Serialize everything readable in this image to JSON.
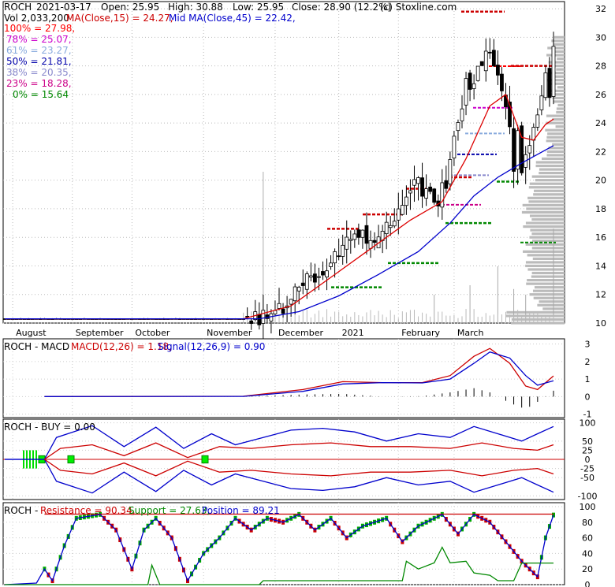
{
  "header": {
    "ticker": "ROCH",
    "date": "2021-03-17",
    "open": "Open: 25.95",
    "high": "High: 30.88",
    "low": "Low: 25.95",
    "close": "Close: 28.90 (12.2%)",
    "source": "(c) Stoxline.com",
    "volume": "Vol 2,033,200",
    "ma15": "MA(Close,15) = 24.27,",
    "ma45": "Mid MA(Close,45) = 22.42,"
  },
  "fib_levels": [
    {
      "label": "100% = 27.98,",
      "color": "#ff0000",
      "value": 27.98
    },
    {
      "label": "78% = 25.07,",
      "color": "#cc00cc",
      "value": 25.07
    },
    {
      "label": "61% = 23.27,",
      "color": "#88aadd",
      "value": 23.27
    },
    {
      "label": "50% = 21.81,",
      "color": "#0000aa",
      "value": 21.81
    },
    {
      "label": "38% = 20.35,",
      "color": "#8888cc",
      "value": 20.35
    },
    {
      "label": "23% = 18.28,",
      "color": "#cc0088",
      "value": 18.28
    },
    {
      "label": "0% = 15.64",
      "color": "#008800",
      "value": 15.64
    }
  ],
  "macd_header": {
    "label": "ROCH - MACD",
    "macd": "MACD(12,26) = 1.18,",
    "signal": "Signal(12,26,9) = 0.90"
  },
  "buy_header": {
    "label": "ROCH - BUY = 0.00"
  },
  "res_header": {
    "label": "ROCH - ",
    "resistance": "Resistance = 90.34,",
    "support": "Support = 27.63,",
    "position": "Position = 89.21"
  },
  "colors": {
    "up": "#00aa00",
    "down": "#cc0000",
    "ma15": "#dd0000",
    "ma45": "#0000cc",
    "support": "#008800",
    "resistance": "#cc0000"
  },
  "chart_data": [
    {
      "type": "candlestick",
      "title": "ROCH 2021-03-17",
      "x_labels": [
        "August",
        "September",
        "October",
        "November",
        "December",
        "2021",
        "February",
        "March"
      ],
      "y_ticks": [
        10,
        12,
        14,
        16,
        18,
        20,
        22,
        24,
        26,
        28,
        30,
        32
      ],
      "ylim": [
        10,
        32.5
      ],
      "grid": true,
      "close_path": [
        [
          0,
          10.3
        ],
        [
          60,
          10.3
        ],
        [
          66,
          10.5
        ],
        [
          70,
          11.2
        ],
        [
          74,
          12.5
        ],
        [
          78,
          13.3
        ],
        [
          82,
          14.5
        ],
        [
          86,
          15.8
        ],
        [
          90,
          16.8
        ],
        [
          92,
          15.4
        ],
        [
          95,
          16.2
        ],
        [
          98,
          17.2
        ],
        [
          101,
          18.8
        ],
        [
          104,
          19.8
        ],
        [
          107,
          18.7
        ],
        [
          109,
          18.5
        ],
        [
          111,
          20.0
        ],
        [
          114,
          24.0
        ],
        [
          116,
          27.0
        ],
        [
          118,
          26.5
        ],
        [
          120,
          28.5
        ],
        [
          122,
          29.5
        ],
        [
          124,
          27.2
        ],
        [
          126,
          25.5
        ],
        [
          127,
          24.0
        ],
        [
          128,
          20.5
        ],
        [
          129,
          23.0
        ],
        [
          130,
          20.5
        ],
        [
          131,
          22.0
        ],
        [
          133,
          24.0
        ],
        [
          134,
          24.8
        ],
        [
          136,
          27.5
        ],
        [
          137,
          25.7
        ],
        [
          138,
          28.9
        ]
      ],
      "ma15_path": [
        [
          0,
          10.3
        ],
        [
          60,
          10.3
        ],
        [
          72,
          11.2
        ],
        [
          82,
          13.2
        ],
        [
          92,
          15.2
        ],
        [
          102,
          17.2
        ],
        [
          110,
          18.5
        ],
        [
          116,
          21.5
        ],
        [
          122,
          25.2
        ],
        [
          126,
          26.0
        ],
        [
          130,
          23.0
        ],
        [
          133,
          22.8
        ],
        [
          136,
          23.9
        ],
        [
          138,
          24.27
        ]
      ],
      "ma45_path": [
        [
          0,
          10.3
        ],
        [
          64,
          10.3
        ],
        [
          74,
          10.8
        ],
        [
          84,
          11.9
        ],
        [
          94,
          13.4
        ],
        [
          104,
          15.0
        ],
        [
          112,
          17.0
        ],
        [
          118,
          18.9
        ],
        [
          124,
          20.2
        ],
        [
          130,
          21.2
        ],
        [
          138,
          22.42
        ]
      ],
      "volume_spikes": [
        [
          65,
          0.8
        ],
        [
          108,
          0.15
        ],
        [
          117,
          0.2
        ],
        [
          124,
          0.3
        ],
        [
          128,
          0.18
        ],
        [
          131,
          0.15
        ],
        [
          138,
          0.5
        ]
      ]
    },
    {
      "type": "line",
      "title": "ROCH - MACD",
      "y_ticks": [
        3,
        2,
        1,
        0,
        -1
      ],
      "ylim": [
        -1.2,
        3.3
      ],
      "series": [
        {
          "name": "MACD(12,26)",
          "color": "#cc0000",
          "values": [
            [
              10,
              0
            ],
            [
              60,
              0.02
            ],
            [
              75,
              0.4
            ],
            [
              85,
              0.85
            ],
            [
              95,
              0.8
            ],
            [
              105,
              0.8
            ],
            [
              112,
              1.2
            ],
            [
              118,
              2.3
            ],
            [
              122,
              2.75
            ],
            [
              127,
              1.9
            ],
            [
              131,
              0.6
            ],
            [
              134,
              0.4
            ],
            [
              138,
              1.18
            ]
          ]
        },
        {
          "name": "Signal(12,26,9)",
          "color": "#0000cc",
          "values": [
            [
              10,
              0
            ],
            [
              60,
              0.01
            ],
            [
              75,
              0.3
            ],
            [
              85,
              0.72
            ],
            [
              95,
              0.8
            ],
            [
              105,
              0.78
            ],
            [
              112,
              1.0
            ],
            [
              118,
              1.9
            ],
            [
              122,
              2.55
            ],
            [
              127,
              2.2
            ],
            [
              131,
              1.2
            ],
            [
              134,
              0.65
            ],
            [
              138,
              0.9
            ]
          ]
        }
      ]
    },
    {
      "type": "line",
      "title": "ROCH - BUY",
      "y_ticks": [
        100,
        50,
        25,
        0,
        -25,
        -50,
        -100
      ],
      "ylim": [
        -110,
        110
      ],
      "series": [
        {
          "name": "upper",
          "color": "#0000cc",
          "values": [
            [
              0,
              0
            ],
            [
              10,
              0
            ],
            [
              13,
              60
            ],
            [
              22,
              92
            ],
            [
              30,
              35
            ],
            [
              38,
              88
            ],
            [
              45,
              30
            ],
            [
              52,
              70
            ],
            [
              58,
              40
            ],
            [
              65,
              60
            ],
            [
              72,
              80
            ],
            [
              80,
              85
            ],
            [
              88,
              75
            ],
            [
              96,
              50
            ],
            [
              104,
              70
            ],
            [
              112,
              60
            ],
            [
              118,
              90
            ],
            [
              124,
              70
            ],
            [
              130,
              50
            ],
            [
              134,
              70
            ],
            [
              138,
              90
            ]
          ]
        },
        {
          "name": "lower",
          "color": "#0000cc",
          "values": [
            [
              0,
              0
            ],
            [
              10,
              0
            ],
            [
              13,
              -60
            ],
            [
              22,
              -92
            ],
            [
              30,
              -35
            ],
            [
              38,
              -88
            ],
            [
              45,
              -30
            ],
            [
              52,
              -70
            ],
            [
              58,
              -40
            ],
            [
              65,
              -60
            ],
            [
              72,
              -80
            ],
            [
              80,
              -85
            ],
            [
              88,
              -75
            ],
            [
              96,
              -50
            ],
            [
              104,
              -70
            ],
            [
              112,
              -60
            ],
            [
              118,
              -90
            ],
            [
              124,
              -70
            ],
            [
              130,
              -50
            ],
            [
              134,
              -70
            ],
            [
              138,
              -90
            ]
          ]
        },
        {
          "name": "mid_up",
          "color": "#cc0000",
          "values": [
            [
              10,
              0
            ],
            [
              14,
              30
            ],
            [
              22,
              40
            ],
            [
              30,
              10
            ],
            [
              38,
              45
            ],
            [
              46,
              5
            ],
            [
              54,
              35
            ],
            [
              62,
              30
            ],
            [
              72,
              40
            ],
            [
              82,
              45
            ],
            [
              92,
              35
            ],
            [
              102,
              35
            ],
            [
              112,
              30
            ],
            [
              120,
              45
            ],
            [
              128,
              30
            ],
            [
              134,
              25
            ],
            [
              138,
              40
            ]
          ]
        },
        {
          "name": "mid_down",
          "color": "#cc0000",
          "values": [
            [
              10,
              0
            ],
            [
              14,
              -30
            ],
            [
              22,
              -40
            ],
            [
              30,
              -10
            ],
            [
              38,
              -45
            ],
            [
              46,
              -5
            ],
            [
              54,
              -35
            ],
            [
              62,
              -30
            ],
            [
              72,
              -40
            ],
            [
              82,
              -45
            ],
            [
              92,
              -35
            ],
            [
              102,
              -35
            ],
            [
              112,
              -30
            ],
            [
              120,
              -45
            ],
            [
              128,
              -30
            ],
            [
              134,
              -25
            ],
            [
              138,
              -40
            ]
          ]
        }
      ]
    },
    {
      "type": "line",
      "title": "ROCH - Resistance / Support / Position",
      "y_ticks": [
        100,
        80,
        60,
        40,
        20,
        0
      ],
      "ylim": [
        0,
        105
      ],
      "series": [
        {
          "name": "Resistance",
          "color": "#cc0000",
          "values": [
            [
              10,
              90.34
            ],
            [
              138,
              90.34
            ]
          ]
        },
        {
          "name": "Position",
          "color": "#0000cc",
          "values": [
            [
              0,
              0
            ],
            [
              8,
              2
            ],
            [
              10,
              20
            ],
            [
              12,
              5
            ],
            [
              15,
              50
            ],
            [
              18,
              85
            ],
            [
              24,
              90
            ],
            [
              28,
              70
            ],
            [
              32,
              20
            ],
            [
              35,
              70
            ],
            [
              38,
              85
            ],
            [
              42,
              60
            ],
            [
              46,
              5
            ],
            [
              50,
              40
            ],
            [
              54,
              60
            ],
            [
              58,
              85
            ],
            [
              62,
              70
            ],
            [
              66,
              85
            ],
            [
              70,
              80
            ],
            [
              74,
              90
            ],
            [
              78,
              70
            ],
            [
              82,
              85
            ],
            [
              86,
              60
            ],
            [
              90,
              75
            ],
            [
              96,
              85
            ],
            [
              100,
              55
            ],
            [
              104,
              75
            ],
            [
              110,
              90
            ],
            [
              114,
              65
            ],
            [
              118,
              90
            ],
            [
              122,
              80
            ],
            [
              126,
              55
            ],
            [
              130,
              30
            ],
            [
              134,
              10
            ],
            [
              136,
              60
            ],
            [
              138,
              89.21
            ]
          ]
        },
        {
          "name": "Support",
          "color": "#008800",
          "values": [
            [
              0,
              0
            ],
            [
              36,
              0
            ],
            [
              37,
              25
            ],
            [
              39,
              0
            ],
            [
              64,
              0
            ],
            [
              65,
              5
            ],
            [
              100,
              5
            ],
            [
              101,
              30
            ],
            [
              104,
              20
            ],
            [
              108,
              28
            ],
            [
              110,
              48
            ],
            [
              112,
              28
            ],
            [
              116,
              30
            ],
            [
              118,
              15
            ],
            [
              122,
              12
            ],
            [
              124,
              5
            ],
            [
              128,
              5
            ],
            [
              130,
              27.63
            ],
            [
              138,
              27.63
            ]
          ]
        }
      ]
    }
  ]
}
